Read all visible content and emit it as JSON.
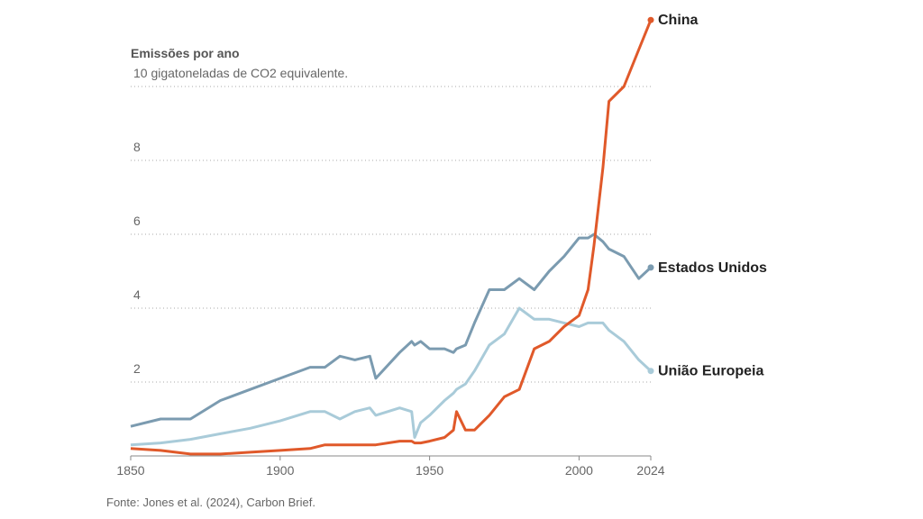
{
  "chart_data": {
    "type": "line",
    "title": "Emissões por ano",
    "source": "Fonte: Jones et al. (2024), Carbon Brief.",
    "x": [
      1850,
      1860,
      1870,
      1880,
      1890,
      1900,
      1910,
      1915,
      1920,
      1925,
      1930,
      1932,
      1940,
      1944,
      1945,
      1947,
      1950,
      1955,
      1958,
      1959,
      1962,
      1965,
      1970,
      1975,
      1980,
      1985,
      1990,
      1995,
      2000,
      2003,
      2005,
      2008,
      2010,
      2015,
      2020,
      2024
    ],
    "series": [
      {
        "name": "União Europeia",
        "color": "#a9cbd9",
        "values": [
          0.3,
          0.35,
          0.45,
          0.6,
          0.75,
          0.95,
          1.2,
          1.2,
          1.0,
          1.2,
          1.3,
          1.1,
          1.3,
          1.2,
          0.5,
          0.9,
          1.1,
          1.5,
          1.7,
          1.8,
          1.95,
          2.3,
          3.0,
          3.3,
          4.0,
          3.7,
          3.7,
          3.6,
          3.5,
          3.6,
          3.6,
          3.6,
          3.4,
          3.1,
          2.6,
          2.3
        ]
      },
      {
        "name": "Estados Unidos",
        "color": "#7b9bb0",
        "values": [
          0.8,
          1.0,
          1.0,
          1.5,
          1.8,
          2.1,
          2.4,
          2.4,
          2.7,
          2.6,
          2.7,
          2.1,
          2.8,
          3.1,
          3.0,
          3.1,
          2.9,
          2.9,
          2.8,
          2.9,
          3.0,
          3.6,
          4.5,
          4.5,
          4.8,
          4.5,
          5.0,
          5.4,
          5.9,
          5.9,
          6.0,
          5.8,
          5.6,
          5.4,
          4.8,
          5.1
        ]
      },
      {
        "name": "China",
        "color": "#e0592a",
        "values": [
          0.2,
          0.15,
          0.05,
          0.05,
          0.1,
          0.15,
          0.2,
          0.3,
          0.3,
          0.3,
          0.3,
          0.3,
          0.4,
          0.4,
          0.35,
          0.35,
          0.4,
          0.5,
          0.7,
          1.2,
          0.7,
          0.7,
          1.1,
          1.6,
          1.8,
          2.9,
          3.1,
          3.5,
          3.8,
          4.5,
          5.7,
          7.8,
          9.6,
          10.0,
          11.0,
          11.8
        ]
      }
    ],
    "xlim": [
      1850,
      2024
    ],
    "xticks": [
      1850,
      1900,
      1950,
      2000,
      2024
    ],
    "ylim": [
      0,
      12
    ],
    "yticks": [
      2,
      4,
      6,
      8,
      {
        "value": 10,
        "label": "10 gigatoneladas de CO2 equivalente."
      }
    ],
    "grid": true
  }
}
